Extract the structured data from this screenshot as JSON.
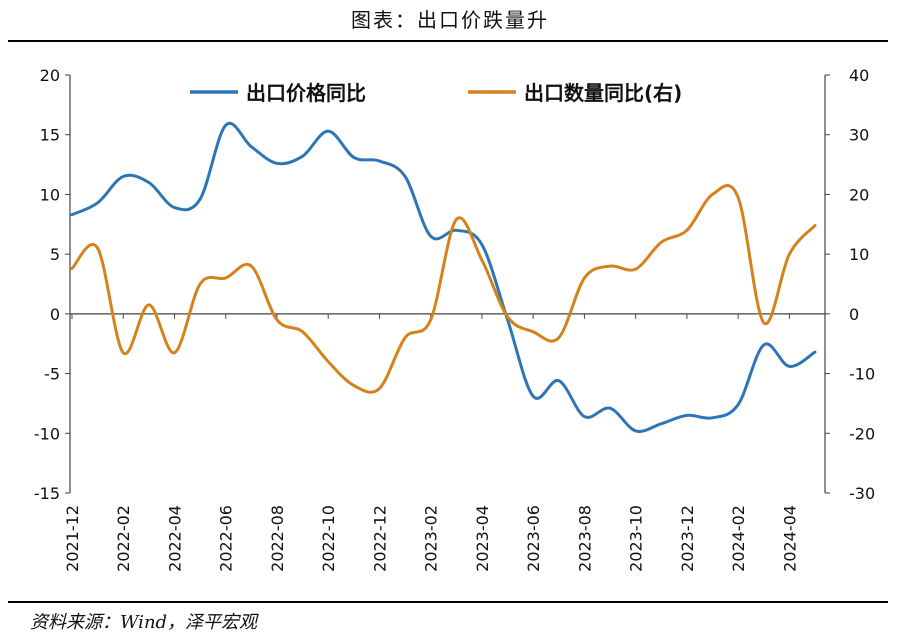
{
  "header": {
    "title": "图表：出口价跌量升"
  },
  "footer": {
    "source": "资料来源：Wind，泽平宏观"
  },
  "chart_data": {
    "type": "line",
    "title": "图表：出口价跌量升",
    "x": [
      "2021-12",
      "2022-01",
      "2022-02",
      "2022-03",
      "2022-04",
      "2022-05",
      "2022-06",
      "2022-07",
      "2022-08",
      "2022-09",
      "2022-10",
      "2022-11",
      "2022-12",
      "2023-01",
      "2023-02",
      "2023-03",
      "2023-04",
      "2023-05",
      "2023-06",
      "2023-07",
      "2023-08",
      "2023-09",
      "2023-10",
      "2023-11",
      "2023-12",
      "2024-01",
      "2024-02",
      "2024-03",
      "2024-04",
      "2024-05"
    ],
    "x_tick_labels": [
      "2021-12",
      "2022-02",
      "2022-04",
      "2022-06",
      "2022-08",
      "2022-10",
      "2022-12",
      "2023-02",
      "2023-04",
      "2023-06",
      "2023-08",
      "2023-10",
      "2023-12",
      "2024-02",
      "2024-04"
    ],
    "left_axis": {
      "ylim": [
        -15,
        20
      ],
      "ticks": [
        "20",
        "15",
        "10",
        "5",
        "0",
        "-5",
        "-10",
        "-15"
      ]
    },
    "right_axis": {
      "ylim": [
        -30,
        40
      ],
      "ticks": [
        "40",
        "30",
        "20",
        "10",
        "0",
        "-10",
        "-20",
        "-30"
      ]
    },
    "legend_placement": "top",
    "series": [
      {
        "name": "出口价格同比",
        "axis": "left",
        "color": "#2e75b6",
        "values": [
          8.3,
          9.3,
          11.5,
          11.0,
          8.9,
          9.6,
          15.8,
          14.0,
          12.6,
          13.2,
          15.3,
          13.1,
          12.8,
          11.5,
          6.5,
          7.0,
          5.8,
          -0.5,
          -6.9,
          -5.6,
          -8.6,
          -7.9,
          -9.8,
          -9.2,
          -8.5,
          -8.7,
          -7.6,
          -2.6,
          -4.4,
          -3.2
        ]
      },
      {
        "name": "出口数量同比(右)",
        "axis": "right",
        "color": "#d4831c",
        "values": [
          7.6,
          11.0,
          -6.5,
          1.5,
          -6.5,
          5.0,
          6.0,
          8.0,
          -1.0,
          -3.0,
          -8.0,
          -12.0,
          -12.5,
          -4.0,
          -1.0,
          15.8,
          9.0,
          -0.5,
          -3.0,
          -4.0,
          6.0,
          8.0,
          7.5,
          12.0,
          14.0,
          20.0,
          19.5,
          -1.5,
          10.0,
          14.8
        ]
      }
    ]
  }
}
